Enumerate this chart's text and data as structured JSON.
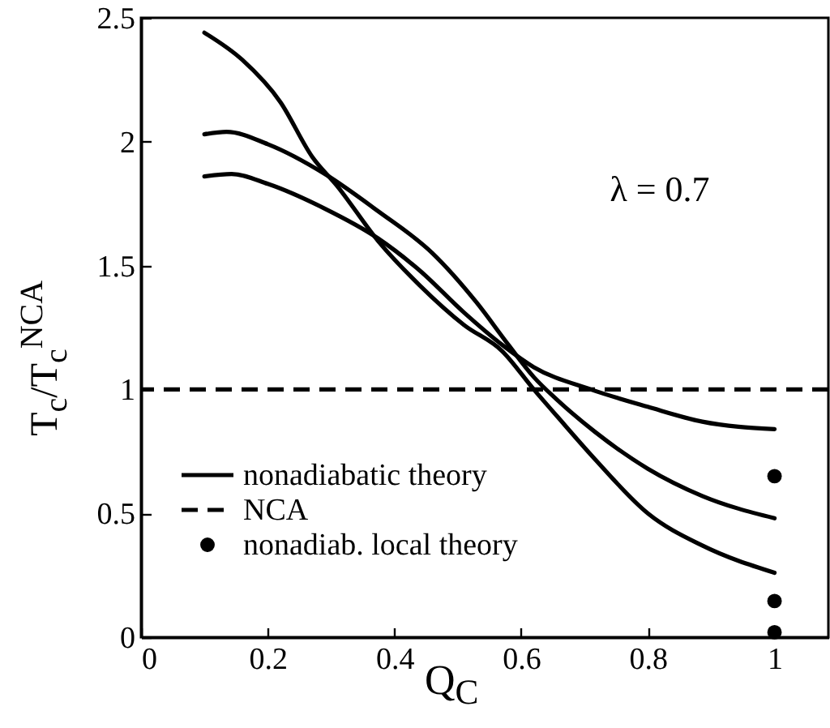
{
  "chart_data": {
    "type": "line",
    "xlabel": "Q$_{C}$",
    "ylabel": "T$_{c}$/T$_{c}$$^{NCA}$",
    "annotations": [
      "λ = 0.7"
    ],
    "xlim": [
      0,
      1.085
    ],
    "ylim": [
      0,
      2.5
    ],
    "xticks": [
      0,
      0.2,
      0.4,
      0.6,
      0.8,
      1
    ],
    "yticks": [
      0,
      0.5,
      1,
      1.5,
      2,
      2.5
    ],
    "grid": false,
    "legend": "bottom left",
    "line_style": "solid",
    "ref_lines": [
      {
        "axis": "y",
        "value": 1,
        "label": "NCA",
        "line_style": "dashed",
        "color": "#000000"
      }
    ],
    "series": [
      {
        "name": "nonadiabatic theory",
        "type": "line",
        "color": "#000000",
        "x": [
          0.1,
          0.16,
          0.22,
          0.27,
          0.31,
          0.374,
          0.44,
          0.51,
          0.57,
          0.62,
          0.656,
          0.716,
          0.8,
          0.886,
          1.0
        ],
        "values": [
          2.44,
          2.33,
          2.16,
          1.94,
          1.82,
          1.6,
          1.42,
          1.26,
          1.155,
          1.0,
          0.894,
          0.72,
          0.5,
          0.37,
          0.26
        ]
      },
      {
        "type": "line",
        "color": "#000000",
        "x": [
          0.1,
          0.135,
          0.2,
          0.29,
          0.374,
          0.46,
          0.53,
          0.58,
          0.62,
          0.656,
          0.716,
          0.8,
          0.886,
          1.0
        ],
        "values": [
          2.03,
          2.04,
          1.99,
          1.87,
          1.72,
          1.55,
          1.35,
          1.18,
          1.05,
          0.96,
          0.83,
          0.68,
          0.57,
          0.48
        ]
      },
      {
        "type": "line",
        "color": "#000000",
        "x": [
          0.1,
          0.143,
          0.2,
          0.29,
          0.374,
          0.44,
          0.51,
          0.57,
          0.62,
          0.71,
          0.8,
          0.886,
          1.0
        ],
        "values": [
          1.86,
          1.87,
          1.83,
          1.73,
          1.61,
          1.48,
          1.31,
          1.18,
          1.09,
          1.0,
          0.93,
          0.87,
          0.84
        ]
      },
      {
        "name": "nonadiab. local theory",
        "type": "scatter",
        "marker": "circle",
        "color": "#000000",
        "x": [
          1,
          1,
          1
        ],
        "values": [
          0.65,
          0.146,
          0.02
        ]
      }
    ]
  }
}
